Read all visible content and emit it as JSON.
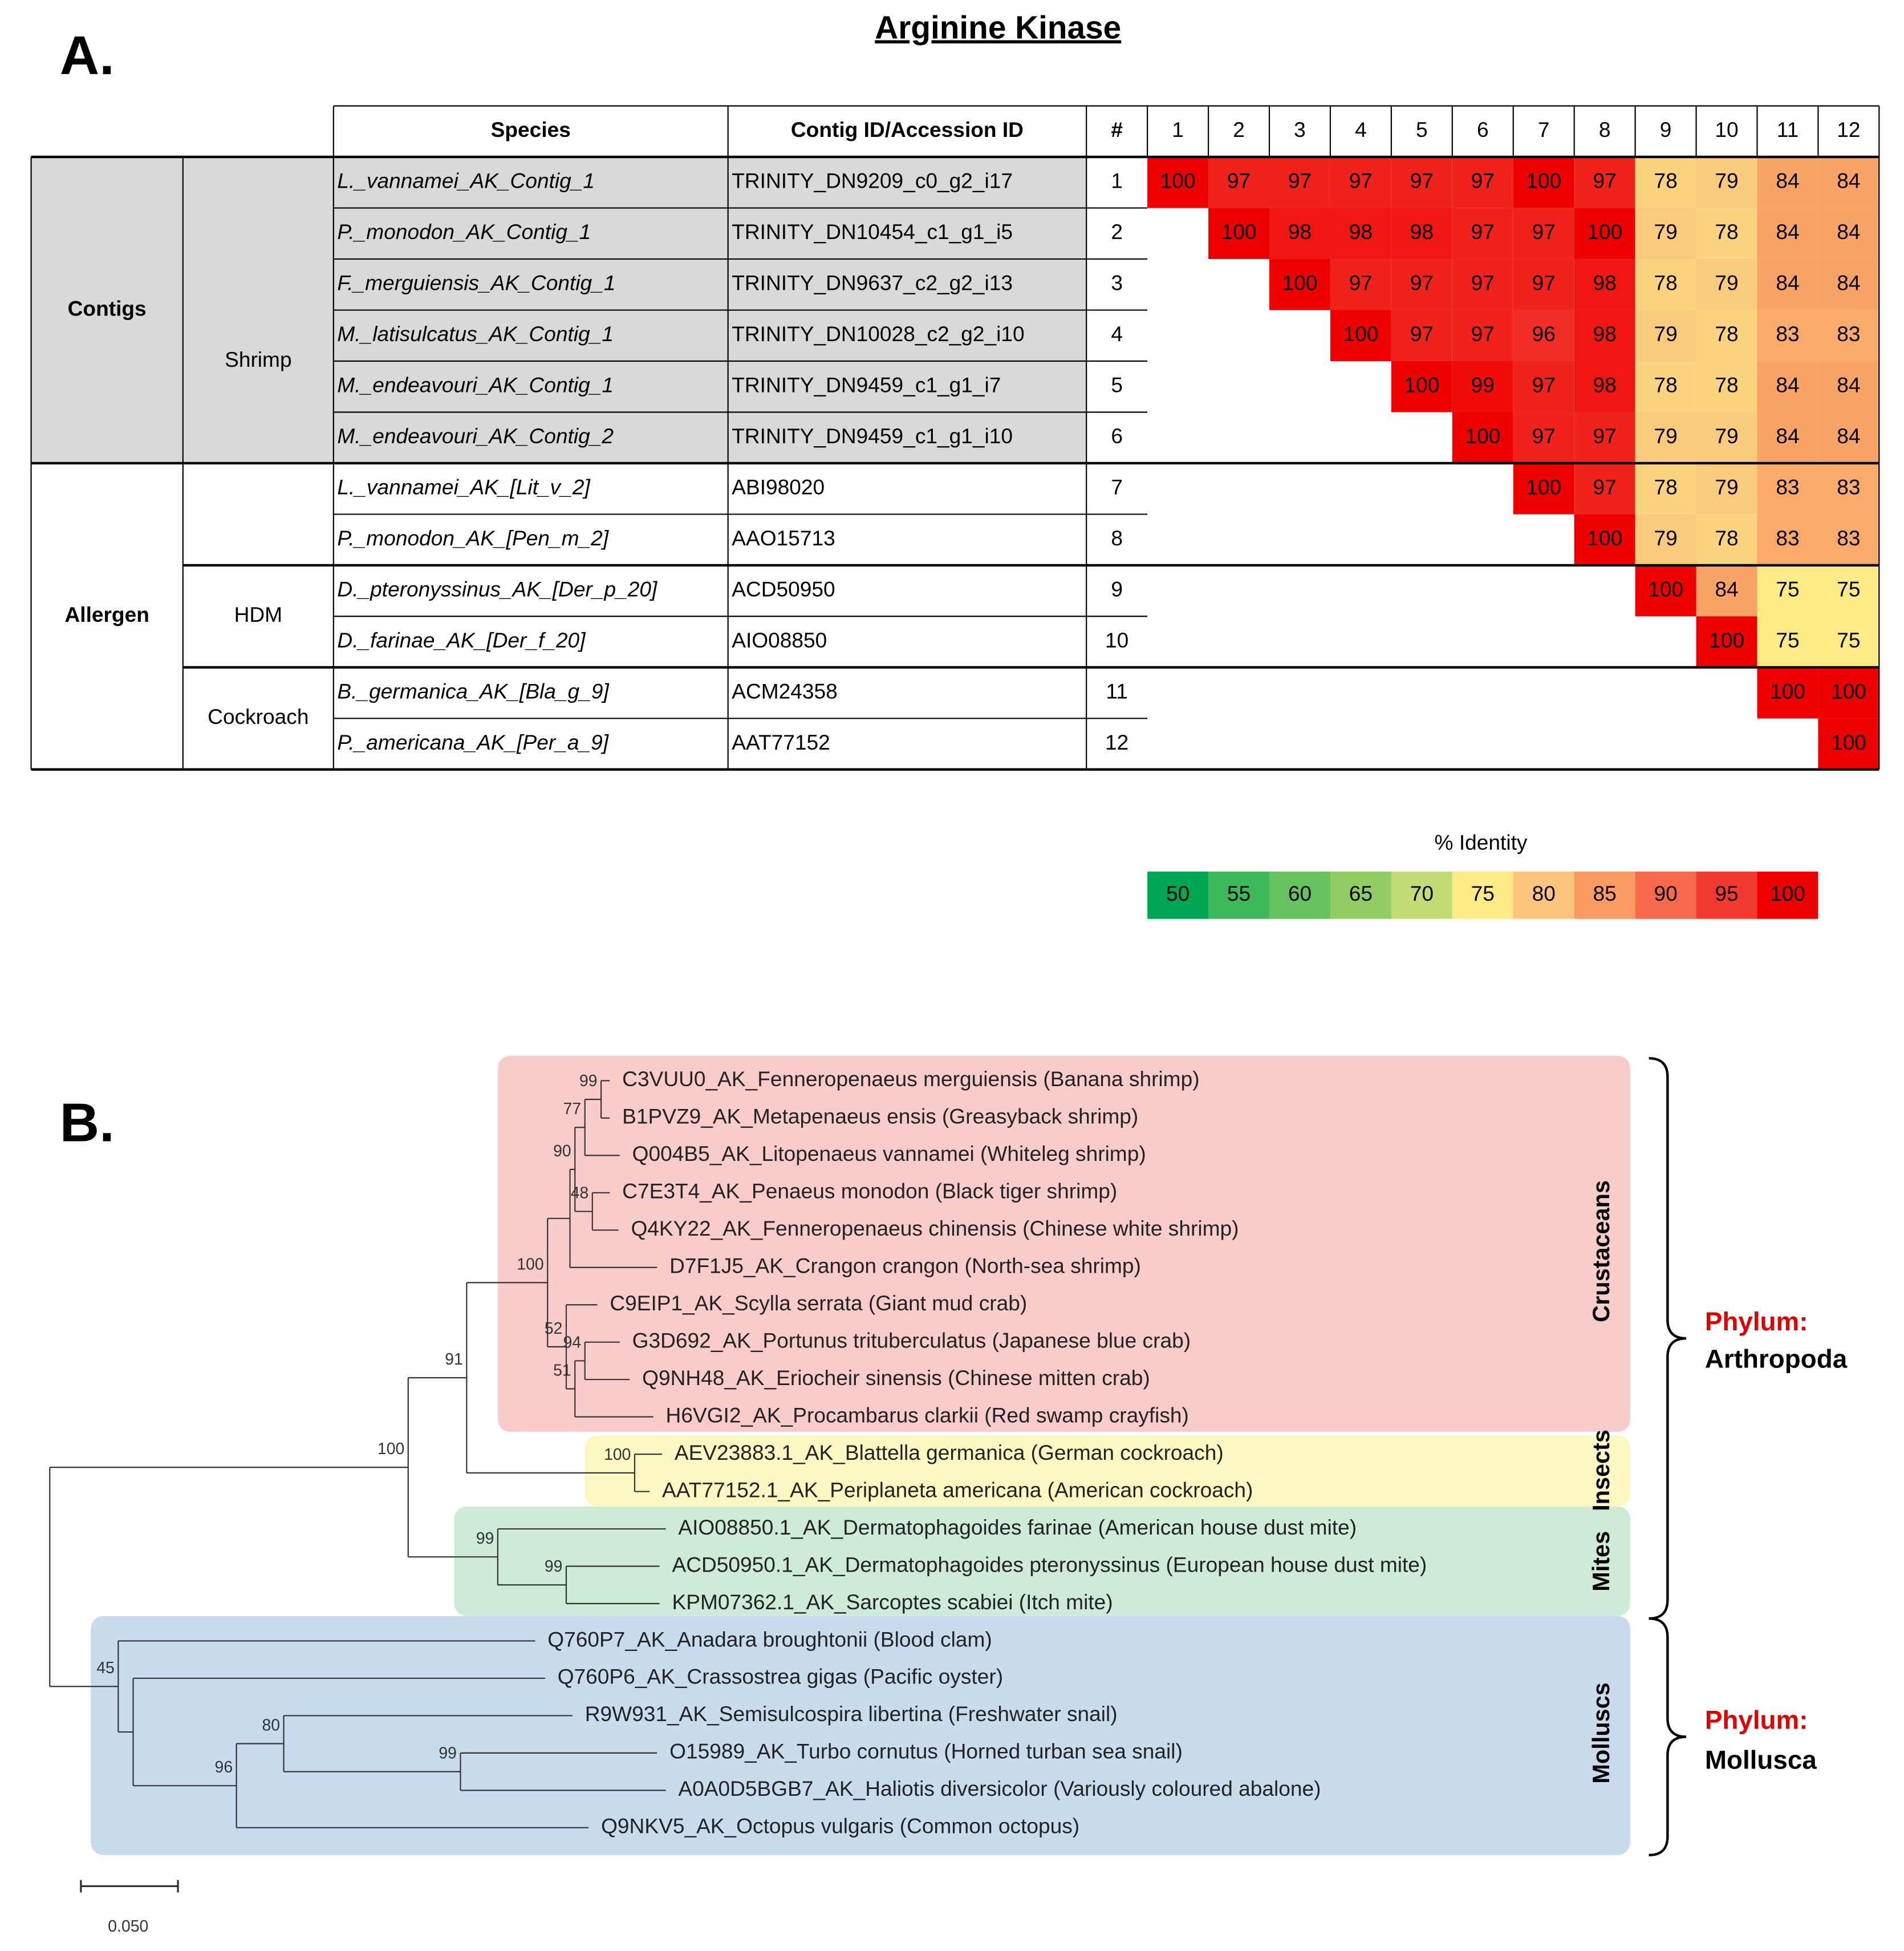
{
  "panel_a": {
    "label": "A.",
    "title": "Arginine Kinase",
    "table": {
      "headers": [
        "Species",
        "Contig ID/Accession ID",
        "#"
      ],
      "columns": [
        1,
        2,
        3,
        4,
        5,
        6,
        7,
        8,
        9,
        10,
        11,
        12
      ],
      "groups": [
        "Contigs",
        "Allergen"
      ],
      "subgroups": [
        "Shrimp",
        "HDM",
        "Cockroach"
      ],
      "rows": [
        {
          "species": "L._vannamei_AK_Contig_1",
          "id": "TRINITY_DN9209_c0_g2_i17",
          "num": 1,
          "identity": [
            100,
            97,
            97,
            97,
            97,
            97,
            100,
            97,
            78,
            79,
            84,
            84
          ]
        },
        {
          "species": "P._monodon_AK_Contig_1",
          "id": "TRINITY_DN10454_c1_g1_i5",
          "num": 2,
          "identity": [
            100,
            98,
            98,
            98,
            97,
            97,
            100,
            79,
            78,
            84,
            84
          ]
        },
        {
          "species": "F._merguiensis_AK_Contig_1",
          "id": "TRINITY_DN9637_c2_g2_i13",
          "num": 3,
          "identity": [
            100,
            97,
            97,
            97,
            97,
            98,
            78,
            79,
            84,
            84
          ]
        },
        {
          "species": "M._latisulcatus_AK_Contig_1",
          "id": "TRINITY_DN10028_c2_g2_i10",
          "num": 4,
          "identity": [
            100,
            97,
            97,
            96,
            98,
            79,
            78,
            83,
            83
          ]
        },
        {
          "species": "M._endeavouri_AK_Contig_1",
          "id": "TRINITY_DN9459_c1_g1_i7",
          "num": 5,
          "identity": [
            100,
            99,
            97,
            98,
            78,
            78,
            84,
            84
          ]
        },
        {
          "species": "M._endeavouri_AK_Contig_2",
          "id": "TRINITY_DN9459_c1_g1_i10",
          "num": 6,
          "identity": [
            100,
            97,
            97,
            79,
            79,
            84,
            84
          ]
        },
        {
          "species": "L._vannamei_AK_[Lit_v_2]",
          "id": "ABI98020",
          "num": 7,
          "identity": [
            100,
            97,
            78,
            79,
            83,
            83
          ]
        },
        {
          "species": "P._monodon_AK_[Pen_m_2]",
          "id": "AAO15713",
          "num": 8,
          "identity": [
            100,
            79,
            78,
            83,
            83
          ]
        },
        {
          "species": "D._pteronyssinus_AK_[Der_p_20]",
          "id": "ACD50950",
          "num": 9,
          "identity": [
            100,
            84,
            75,
            75
          ]
        },
        {
          "species": "D._farinae_AK_[Der_f_20]",
          "id": "AIO08850",
          "num": 10,
          "identity": [
            100,
            75,
            75
          ]
        },
        {
          "species": "B._germanica_AK_[Bla_g_9]",
          "id": "ACM24358",
          "num": 11,
          "identity": [
            100,
            100
          ]
        },
        {
          "species": "P._americana_AK_[Per_a_9]",
          "id": "AAT77152",
          "num": 12,
          "identity": [
            100
          ]
        }
      ]
    },
    "legend": {
      "title": "% Identity",
      "stops": [
        {
          "value": 50,
          "color": "#00a651"
        },
        {
          "value": 55,
          "color": "#3cb95a"
        },
        {
          "value": 60,
          "color": "#66c25e"
        },
        {
          "value": 65,
          "color": "#92cd63"
        },
        {
          "value": 70,
          "color": "#c4dc75"
        },
        {
          "value": 75,
          "color": "#fdec86"
        },
        {
          "value": 80,
          "color": "#fbc37b"
        },
        {
          "value": 85,
          "color": "#f99b62"
        },
        {
          "value": 90,
          "color": "#f6694b"
        },
        {
          "value": 95,
          "color": "#f23a2e"
        },
        {
          "value": 100,
          "color": "#ee0000"
        }
      ]
    }
  },
  "panel_b": {
    "label": "B.",
    "leaves": [
      "C3VUU0_AK_Fenneropenaeus merguiensis (Banana shrimp)",
      "B1PVZ9_AK_Metapenaeus ensis (Greasyback shrimp)",
      "Q004B5_AK_Litopenaeus vannamei (Whiteleg shrimp)",
      "C7E3T4_AK_Penaeus monodon (Black tiger shrimp)",
      "Q4KY22_AK_Fenneropenaeus chinensis (Chinese white shrimp)",
      "D7F1J5_AK_Crangon crangon (North-sea shrimp)",
      "C9EIP1_AK_Scylla serrata (Giant mud crab)",
      "G3D692_AK_Portunus trituberculatus (Japanese blue crab)",
      "Q9NH48_AK_Eriocheir sinensis (Chinese mitten crab)",
      "H6VGI2_AK_Procambarus clarkii (Red swamp crayfish)",
      "AEV23883.1_AK_Blattella germanica (German cockroach)",
      "AAT77152.1_AK_Periplaneta americana (American cockroach)",
      "AIO08850.1_AK_Dermatophagoides farinae (American house dust mite)",
      "ACD50950.1_AK_Dermatophagoides pteronyssinus (European house dust mite)",
      "KPM07362.1_AK_Sarcoptes scabiei (Itch mite)",
      "Q760P7_AK_Anadara broughtonii (Blood clam)",
      "Q760P6_AK_Crassostrea gigas (Pacific oyster)",
      "R9W931_AK_Semisulcospira libertina (Freshwater snail)",
      "O15989_AK_Turbo cornutus (Horned turban sea snail)",
      "A0A0D5BGB7_AK_Haliotis diversicolor (Variously coloured abalone)",
      "Q9NKV5_AK_Octopus vulgaris (Common octopus)"
    ],
    "bootstraps": [
      99,
      77,
      48,
      90,
      94,
      51,
      52,
      100,
      100,
      91,
      99,
      99,
      100,
      99,
      80,
      96,
      45
    ],
    "clades": [
      "Crustaceans",
      "Insects",
      "Mites",
      "Molluscs"
    ],
    "phyla": [
      {
        "prefix": "Phylum:",
        "name": "Arthropoda"
      },
      {
        "prefix": "Phylum:",
        "name": "Mollusca"
      }
    ],
    "scale": "0.050"
  }
}
